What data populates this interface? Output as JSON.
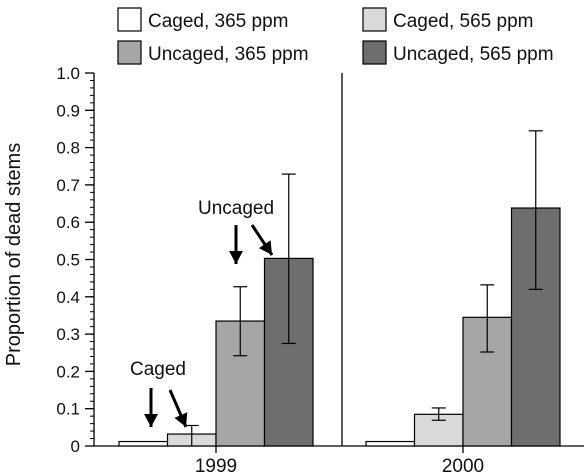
{
  "chart_data": {
    "type": "bar",
    "ylabel": "Proportion of dead stems",
    "ylim": [
      0,
      1.0
    ],
    "yticks": [
      "0",
      "0.1",
      "0.2",
      "0.3",
      "0.4",
      "0.5",
      "0.6",
      "0.7",
      "0.8",
      "0.9",
      "1.0"
    ],
    "categories": [
      "1999",
      "2000"
    ],
    "legend_placement": "top",
    "series": [
      {
        "name": "Caged, 365 ppm",
        "color": "#ffffff",
        "values": [
          0.012,
          0.012
        ],
        "err_low": [
          0.0,
          0.0
        ],
        "err_high": [
          0.0,
          0.0
        ]
      },
      {
        "name": "Caged, 565 ppm",
        "color": "#d9d9d9",
        "values": [
          0.032,
          0.085
        ],
        "err_low": [
          0.032,
          0.016
        ],
        "err_high": [
          0.023,
          0.017
        ]
      },
      {
        "name": "Uncaged, 365 ppm",
        "color": "#a6a6a6",
        "values": [
          0.335,
          0.345
        ],
        "err_low": [
          0.093,
          0.093
        ],
        "err_high": [
          0.092,
          0.087
        ]
      },
      {
        "name": "Uncaged, 565 ppm",
        "color": "#6e6e6e",
        "values": [
          0.503,
          0.638
        ],
        "err_low": [
          0.228,
          0.218
        ],
        "err_high": [
          0.226,
          0.207
        ]
      }
    ],
    "annotations": [
      {
        "text": "Caged",
        "panel": "1999"
      },
      {
        "text": "Uncaged",
        "panel": "1999"
      }
    ]
  }
}
